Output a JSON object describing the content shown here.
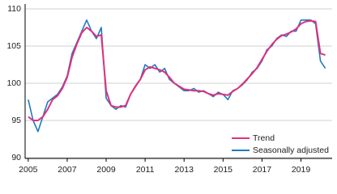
{
  "chart_data": {
    "type": "line",
    "x": [
      2005,
      2005.25,
      2005.5,
      2005.75,
      2006,
      2006.25,
      2006.5,
      2006.75,
      2007,
      2007.25,
      2007.5,
      2007.75,
      2008,
      2008.25,
      2008.5,
      2008.75,
      2009,
      2009.25,
      2009.5,
      2009.75,
      2010,
      2010.25,
      2010.5,
      2010.75,
      2011,
      2011.25,
      2011.5,
      2011.75,
      2012,
      2012.25,
      2012.5,
      2012.75,
      2013,
      2013.25,
      2013.5,
      2013.75,
      2014,
      2014.25,
      2014.5,
      2014.75,
      2015,
      2015.25,
      2015.5,
      2015.75,
      2016,
      2016.25,
      2016.5,
      2016.75,
      2017,
      2017.25,
      2017.5,
      2017.75,
      2018,
      2018.25,
      2018.5,
      2018.75,
      2019,
      2019.25,
      2019.5,
      2019.75,
      2020,
      2020.25
    ],
    "series": [
      {
        "name": "Trend",
        "color": "#e0317f",
        "values": [
          95.5,
          95,
          95,
          95.5,
          96.5,
          97.8,
          98.3,
          99.3,
          100.8,
          103.5,
          105.3,
          106.8,
          107.5,
          107,
          106.3,
          106.5,
          99,
          97,
          96.8,
          96.8,
          97,
          98.5,
          99.6,
          100.5,
          101.8,
          102.2,
          102,
          101.8,
          101.5,
          100.8,
          100,
          99.6,
          99.2,
          99.1,
          99,
          99,
          98.9,
          98.6,
          98.4,
          98.6,
          98.5,
          98.4,
          98.9,
          99.3,
          99.9,
          100.6,
          101.3,
          102.1,
          103.2,
          104.3,
          105.2,
          105.9,
          106.4,
          106.6,
          106.9,
          107.3,
          108,
          108.3,
          108.4,
          108.3,
          104,
          103.8
        ]
      },
      {
        "name": "Seasonally adjusted",
        "color": "#1f7bbf",
        "values": [
          97.8,
          95,
          93.5,
          95.5,
          97.5,
          98,
          98.5,
          99.5,
          101,
          104,
          105.5,
          107,
          108.5,
          107,
          106,
          107.5,
          98,
          97,
          96.5,
          97,
          96.8,
          98.5,
          99.5,
          100.5,
          102.5,
          102,
          102.5,
          101.5,
          102,
          100.5,
          100,
          99.5,
          99,
          99,
          99.3,
          98.8,
          99,
          98.6,
          98.2,
          98.8,
          98.5,
          97.8,
          99,
          99.3,
          99.8,
          100.5,
          101.5,
          102,
          103,
          104.5,
          105,
          106,
          106.5,
          106.3,
          107,
          107,
          108.5,
          108.5,
          108.5,
          108,
          103,
          102
        ]
      }
    ],
    "xlim": [
      2004.84,
      2020.6
    ],
    "xticks": [
      2005,
      2007,
      2009,
      2011,
      2013,
      2015,
      2017,
      2019
    ],
    "ylim": [
      90,
      110
    ],
    "yticks": [
      90,
      95,
      100,
      105,
      110
    ],
    "grid": true,
    "legend": "lower right"
  }
}
